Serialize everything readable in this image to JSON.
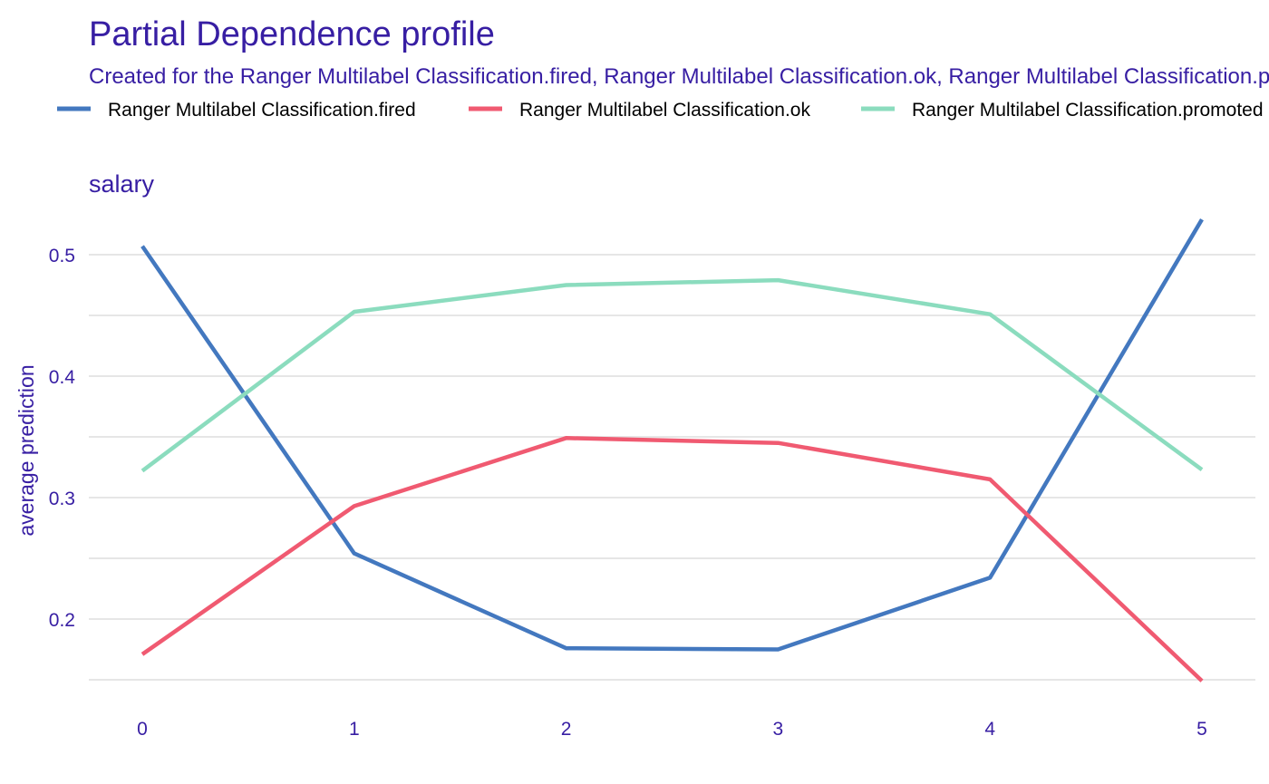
{
  "chart_data": {
    "type": "line",
    "title": "Partial Dependence profile",
    "subtitle": "Created for the Ranger Multilabel Classification.fired, Ranger Multilabel Classification.ok, Ranger Multilabel Classification.promoted model",
    "panel_title": "salary",
    "xlabel": "",
    "ylabel": "average prediction",
    "x": [
      0,
      1,
      2,
      3,
      4,
      5
    ],
    "xlim": [
      0,
      5
    ],
    "ylim": [
      0.15,
      0.53
    ],
    "y_ticks": [
      0.2,
      0.3,
      0.4,
      0.5
    ],
    "y_tick_labels": [
      "0.2",
      "0.3",
      "0.4",
      "0.5"
    ],
    "x_tick_labels": [
      "0",
      "1",
      "2",
      "3",
      "4",
      "5"
    ],
    "grid": true,
    "legend_position": "top",
    "series": [
      {
        "name": "Ranger Multilabel Classification.fired",
        "color": "#4378bf",
        "values": [
          0.507,
          0.254,
          0.176,
          0.175,
          0.234,
          0.529
        ]
      },
      {
        "name": "Ranger Multilabel Classification.ok",
        "color": "#f05a71",
        "values": [
          0.171,
          0.293,
          0.349,
          0.345,
          0.315,
          0.149
        ]
      },
      {
        "name": "Ranger Multilabel Classification.promoted",
        "color": "#8bdcbe",
        "values": [
          0.322,
          0.453,
          0.475,
          0.479,
          0.451,
          0.323
        ]
      }
    ]
  }
}
